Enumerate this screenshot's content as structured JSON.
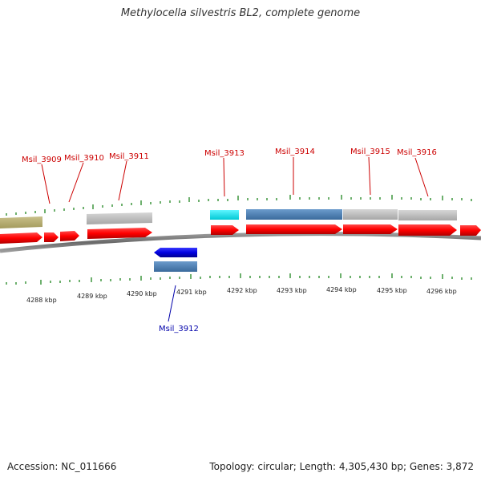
{
  "title": "Methylocella silvestris BL2, complete genome",
  "footer": {
    "accession": "Accession: NC_011666",
    "summary": "Topology: circular; Length: 4,305,430 bp; Genes: 3,872"
  },
  "colors": {
    "cds_forward": "#ff0000",
    "cds_reverse": "#0000dd",
    "label_forward": "#cc0000",
    "label_reverse": "#0000aa",
    "feature_gray": "#b8b8b8",
    "feature_olive": "#b5ac6e",
    "feature_cyan": "#00e5ee",
    "feature_steelblue": "#4a7fb5",
    "tick": "#2f8f2f",
    "backbone": "#777777"
  },
  "scale": {
    "unit": "kbp",
    "labels": [
      "4288 kbp",
      "4289 kbp",
      "4290 kbp",
      "4291 kbp",
      "4292 kbp",
      "4293 kbp",
      "4294 kbp",
      "4295 kbp",
      "4296 kbp"
    ]
  },
  "genes": [
    {
      "name": "Msil_3909",
      "strand": "forward"
    },
    {
      "name": "Msil_3910",
      "strand": "forward"
    },
    {
      "name": "Msil_3911",
      "strand": "forward"
    },
    {
      "name": "Msil_3912",
      "strand": "reverse"
    },
    {
      "name": "Msil_3913",
      "strand": "forward"
    },
    {
      "name": "Msil_3914",
      "strand": "forward"
    },
    {
      "name": "Msil_3915",
      "strand": "forward"
    },
    {
      "name": "Msil_3916",
      "strand": "forward"
    }
  ]
}
